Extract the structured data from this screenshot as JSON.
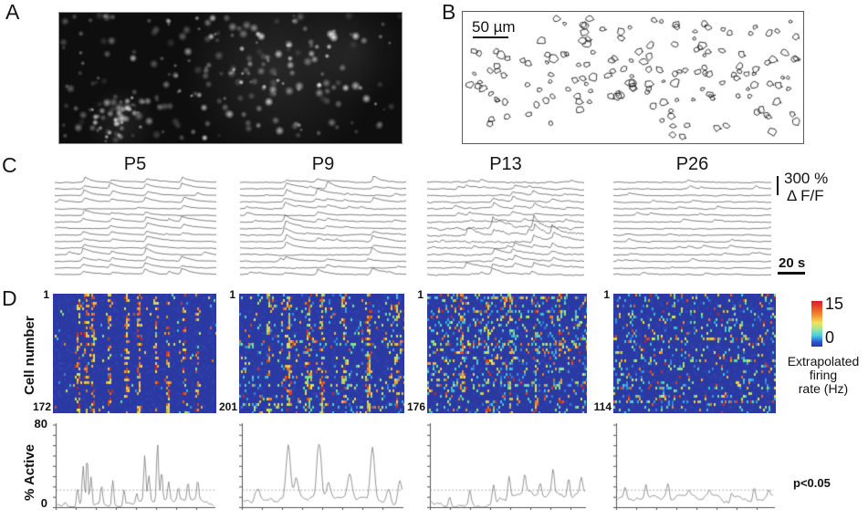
{
  "panel_a": {
    "label": "A"
  },
  "panel_b": {
    "label": "B",
    "scale_bar_label": "50 µm"
  },
  "panel_c": {
    "label": "C",
    "ages": [
      "P5",
      "P9",
      "P13",
      "P26"
    ],
    "amplitude_scale": "300 %",
    "amplitude_unit": "Δ F/F",
    "time_scale": "20 s"
  },
  "panel_d": {
    "label": "D",
    "y_axis_label": "Cell number",
    "heatmaps": [
      {
        "top_cell": "1",
        "bottom_cell": "172"
      },
      {
        "top_cell": "1",
        "bottom_cell": "201"
      },
      {
        "top_cell": "1",
        "bottom_cell": "176"
      },
      {
        "top_cell": "1",
        "bottom_cell": "114"
      }
    ],
    "colorbar": {
      "max_label": "15",
      "min_label": "0",
      "caption_line1": "Extrapolated",
      "caption_line2": "firing",
      "caption_line3": "rate (Hz)"
    }
  },
  "activity_plots": {
    "y_axis_label": "% Active",
    "y_max_label": "80",
    "y_min_label": "0",
    "significance_label": "p<0.05"
  }
}
